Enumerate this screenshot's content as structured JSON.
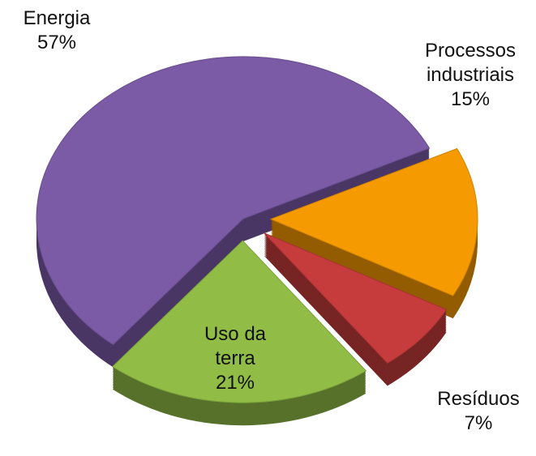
{
  "chart_data": {
    "type": "pie",
    "categories": [
      "Energia",
      "Processos industriais",
      "Resíduos",
      "Uso da terra"
    ],
    "values": [
      57,
      15,
      7,
      21
    ],
    "value_labels": [
      "57%",
      "15%",
      "7%",
      "21%"
    ],
    "colors": [
      "#7b5aa6",
      "#f59a00",
      "#c63c3c",
      "#91bd47"
    ]
  }
}
